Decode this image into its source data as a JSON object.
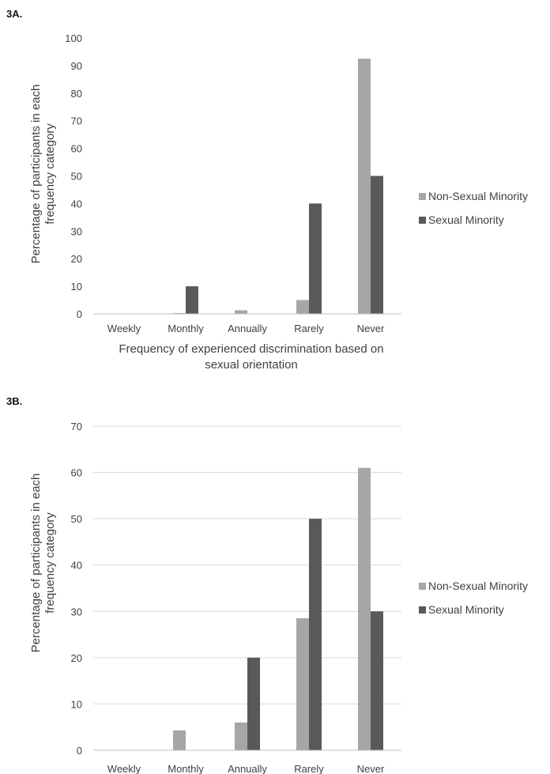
{
  "panels": [
    {
      "label": "3A.",
      "chart_data": {
        "type": "bar",
        "categories": [
          "Weekly",
          "Monthly",
          "Annually",
          "Rarely",
          "Never"
        ],
        "series": [
          {
            "name": "Non-Sexual Minority",
            "values": [
              0,
              0.3,
              1.3,
              5,
              92.5
            ],
            "color": "#a6a6a6"
          },
          {
            "name": "Sexual Minority",
            "values": [
              0,
              10,
              0,
              40,
              50
            ],
            "color": "#595959"
          }
        ],
        "ylim": [
          0,
          100
        ],
        "yticks": [
          0,
          10,
          20,
          30,
          40,
          50,
          60,
          70,
          80,
          90,
          100
        ],
        "ylabel": [
          "Percentage of participants in each",
          "frequency category"
        ],
        "xlabel": [
          "Frequency of experienced discrimination based on",
          "sexual orientation"
        ],
        "grid": false,
        "legend": "right"
      }
    },
    {
      "label": "3B.",
      "chart_data": {
        "type": "bar",
        "categories": [
          "Weekly",
          "Monthly",
          "Annually",
          "Rarely",
          "Never"
        ],
        "series": [
          {
            "name": "Non-Sexual Minority",
            "values": [
              0,
              4.3,
              6,
              28.5,
              61
            ],
            "color": "#a6a6a6"
          },
          {
            "name": "Sexual Minority",
            "values": [
              0,
              0,
              20,
              50,
              30
            ],
            "color": "#595959"
          }
        ],
        "ylim": [
          0,
          70
        ],
        "yticks": [
          0,
          10,
          20,
          30,
          40,
          50,
          60,
          70
        ],
        "ylabel": [
          "Percentage of participants in each",
          "frequency category"
        ],
        "xlabel": [],
        "grid": true,
        "legend": "right"
      }
    }
  ]
}
